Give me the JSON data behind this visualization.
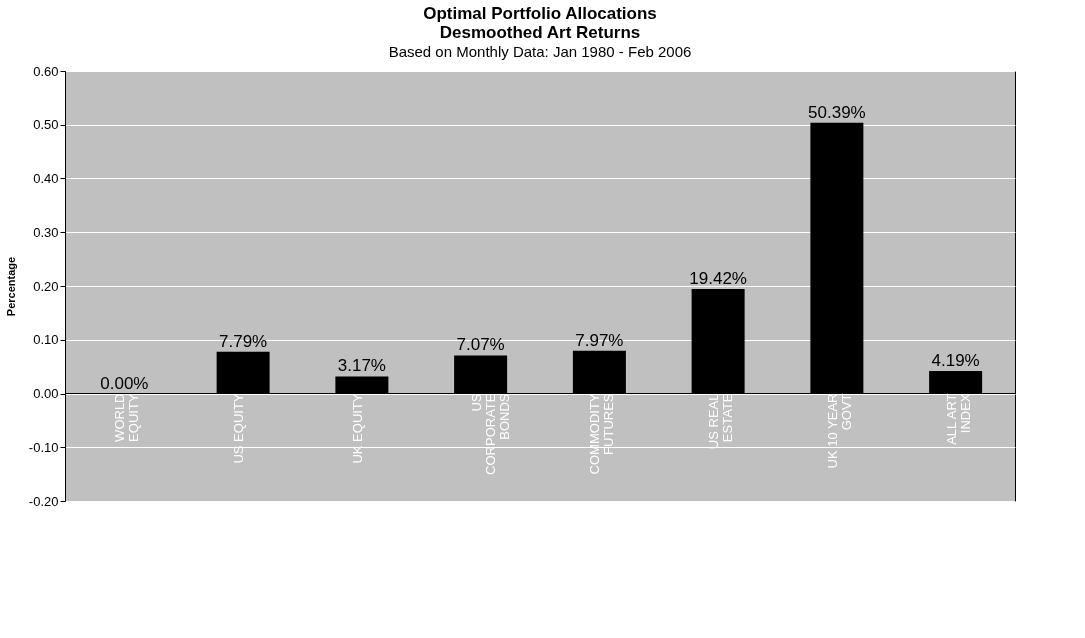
{
  "chart_data": {
    "type": "bar",
    "title": "Optimal Portfolio Allocations\nDesmoothed Art Returns",
    "subtitle": "Based on Monthly Data: Jan 1980 - Feb 2006",
    "ylabel": "Percentage",
    "categories": [
      "WORLD EQUITY",
      "US EQUITY",
      "UK EQUITY",
      "US CORPORATE BONDS",
      "COMMODITY FUTURES",
      "US REAL ESTATE",
      "UK 10 YEAR GOVT",
      "ALL ART INDEX"
    ],
    "values": [
      0.0,
      0.0779,
      0.0317,
      0.0707,
      0.0797,
      0.1942,
      0.5039,
      0.0419
    ],
    "value_labels": [
      "0.00%",
      "7.79%",
      "3.17%",
      "7.07%",
      "7.97%",
      "19.42%",
      "50.39%",
      "4.19%"
    ],
    "color": "#000000",
    "ylim": [
      -0.2,
      0.6
    ],
    "yticks": [
      {
        "value": -0.2,
        "label": "-0.20"
      },
      {
        "value": -0.1,
        "label": "-0.10"
      },
      {
        "value": 0,
        "label": "0.00"
      },
      {
        "value": 0.1,
        "label": "0.10"
      },
      {
        "value": 0.2,
        "label": "0.20"
      },
      {
        "value": 0.3,
        "label": "0.30"
      },
      {
        "value": 0.4,
        "label": "0.40"
      },
      {
        "value": 0.5,
        "label": "0.50"
      },
      {
        "value": 0.6,
        "label": "0.60"
      }
    ],
    "grid": "y",
    "tick_labels": "y"
  }
}
